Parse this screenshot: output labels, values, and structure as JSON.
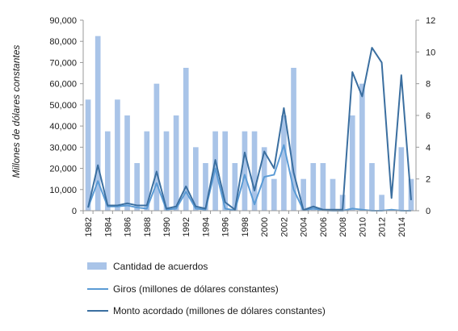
{
  "chart_data": {
    "type": "bar+line",
    "title": "",
    "ylabel": "Millones de dólares constantes",
    "y2label": "",
    "ylim": [
      0,
      90000
    ],
    "y2lim": [
      0,
      12
    ],
    "yticks": [
      "0",
      "10,000",
      "20,000",
      "30,000",
      "40,000",
      "50,000",
      "60,000",
      "70,000",
      "80,000",
      "90,000"
    ],
    "y2ticks": [
      "0",
      "2",
      "4",
      "6",
      "8",
      "10",
      "12"
    ],
    "x": [
      1982,
      1983,
      1984,
      1985,
      1986,
      1987,
      1988,
      1989,
      1990,
      1991,
      1992,
      1993,
      1994,
      1995,
      1996,
      1997,
      1998,
      1999,
      2000,
      2001,
      2002,
      2003,
      2004,
      2005,
      2006,
      2007,
      2008,
      2009,
      2010,
      2011,
      2012,
      2013,
      2014,
      2015
    ],
    "xtick_labels": [
      "1982",
      "1984",
      "1986",
      "1988",
      "1990",
      "1992",
      "1994",
      "1996",
      "1998",
      "2000",
      "2002",
      "2004",
      "2006",
      "2008",
      "2010",
      "2012",
      "2014"
    ],
    "grid": false,
    "legend_position": "bottom",
    "colors": {
      "bars": "#a9c4e8",
      "giros": "#5b9bd5",
      "monto": "#3b6fa0",
      "axis": "#999999"
    },
    "series": [
      {
        "name": "Cantidad de acuerdos",
        "axis": "right",
        "kind": "bar",
        "values": [
          7,
          11,
          5,
          7,
          6,
          3,
          5,
          8,
          5,
          6,
          9,
          4,
          3,
          5,
          5,
          3,
          5,
          5,
          4,
          2,
          6,
          9,
          2,
          3,
          3,
          2,
          1,
          6,
          8,
          3,
          1,
          0,
          4,
          2
        ]
      },
      {
        "name": "Giros (millones de dólares constantes)",
        "axis": "left",
        "kind": "line",
        "values": [
          1500,
          14000,
          2000,
          2000,
          2500,
          1500,
          1000,
          13000,
          500,
          1000,
          9000,
          1000,
          500,
          20000,
          1000,
          200,
          17000,
          3000,
          16000,
          17000,
          31000,
          10000,
          200,
          1000,
          200,
          0,
          0,
          1000,
          500,
          0,
          0,
          500,
          0,
          0
        ]
      },
      {
        "name": "Monto acordado (millones de dólares constantes)",
        "axis": "left",
        "kind": "line",
        "values": [
          1500,
          21500,
          2500,
          2500,
          3500,
          2500,
          2500,
          18500,
          1000,
          2000,
          11500,
          2000,
          1000,
          24000,
          4000,
          500,
          27500,
          9500,
          28000,
          20000,
          48500,
          18000,
          300,
          2000,
          500,
          500,
          500,
          65500,
          54000,
          77000,
          70000,
          6000,
          64000,
          5000
        ]
      }
    ]
  }
}
